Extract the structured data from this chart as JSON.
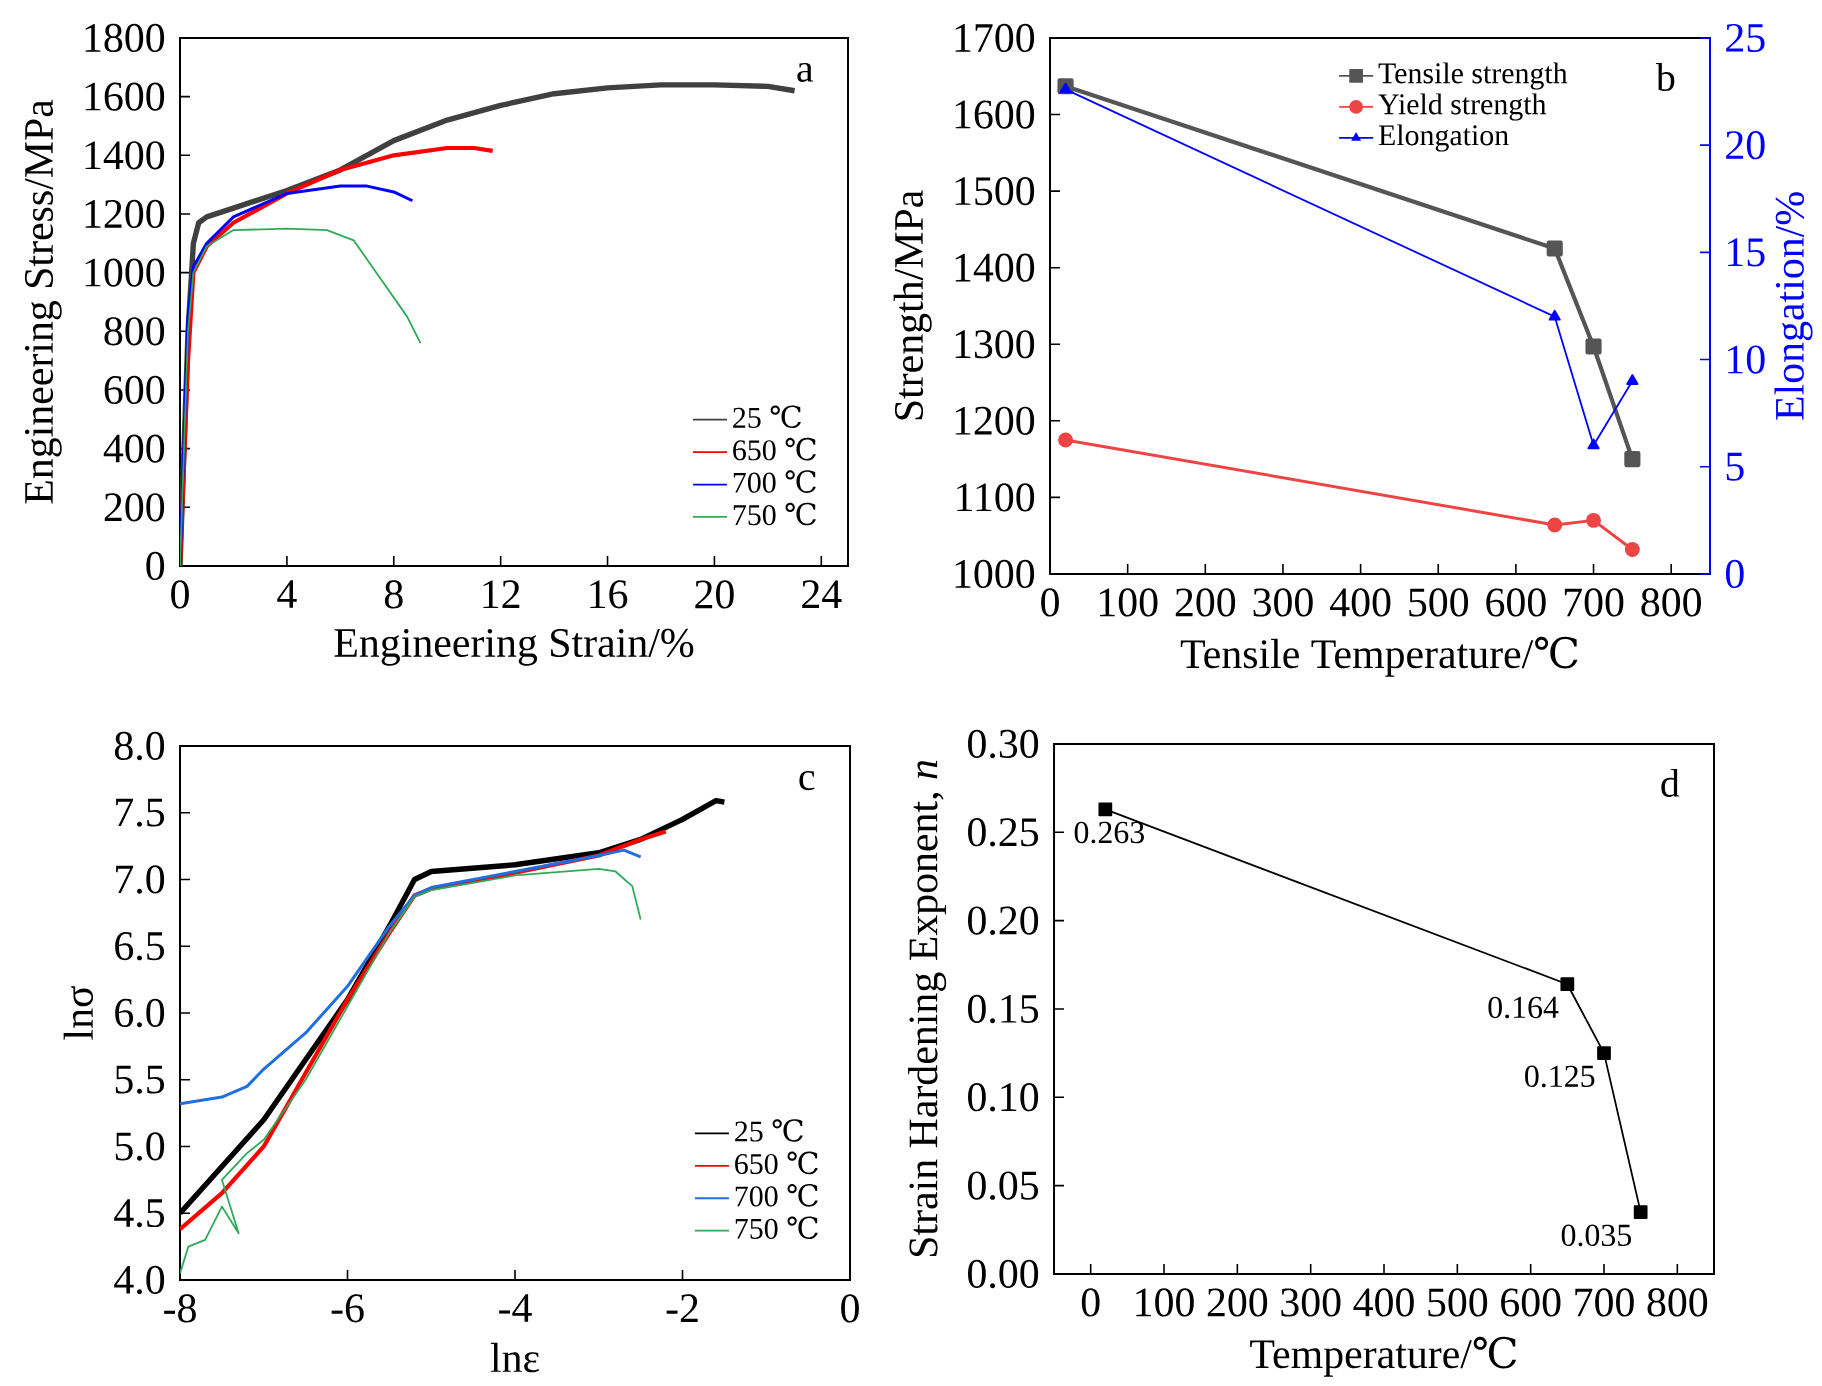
{
  "chart_data": [
    {
      "type": "line",
      "xlabel": "Engineering Strain/%",
      "ylabel": "Engineering Stress/MPa",
      "annotations": [
        "a"
      ],
      "xlim": [
        0,
        25
      ],
      "xticks": [
        0,
        4,
        8,
        12,
        16,
        20,
        24
      ],
      "ylim": [
        0,
        1800
      ],
      "yticks": [
        0,
        200,
        400,
        600,
        800,
        1000,
        1200,
        1400,
        1600,
        1800
      ],
      "legend": "bottom right",
      "series": [
        {
          "name": "25 ℃",
          "color": "#404040",
          "x": [
            0,
            0.3,
            0.5,
            0.7,
            1,
            2,
            4,
            6,
            8,
            10,
            12,
            14,
            16,
            18,
            20,
            22,
            23
          ],
          "values": [
            0,
            800,
            1100,
            1170,
            1190,
            1220,
            1280,
            1350,
            1450,
            1520,
            1570,
            1610,
            1630,
            1640,
            1640,
            1635,
            1620
          ]
        },
        {
          "name": "650 ℃",
          "color": "#ff0000",
          "x": [
            0,
            0.3,
            0.5,
            1,
            2,
            4,
            6,
            8,
            10,
            11,
            11.7
          ],
          "values": [
            0,
            700,
            1000,
            1090,
            1170,
            1270,
            1350,
            1400,
            1425,
            1425,
            1415
          ]
        },
        {
          "name": "700 ℃",
          "color": "#0000ff",
          "x": [
            0,
            0.3,
            0.5,
            1,
            2,
            4,
            6,
            7,
            8,
            8.7
          ],
          "values": [
            0,
            850,
            1020,
            1100,
            1190,
            1270,
            1295,
            1295,
            1275,
            1245
          ]
        },
        {
          "name": "750 ℃",
          "color": "#2eaa5a",
          "x": [
            0,
            0.3,
            0.5,
            1,
            2,
            4,
            5.5,
            6.5,
            7.5,
            8.5,
            9
          ],
          "values": [
            0,
            800,
            1000,
            1090,
            1145,
            1150,
            1145,
            1110,
            980,
            850,
            760
          ]
        }
      ]
    },
    {
      "type": "line",
      "xlabel": "Tensile Temperature/℃",
      "ylabel": "Strength/MPa",
      "y2label": "Elongation/%",
      "annotations": [
        "b"
      ],
      "xlim": [
        0,
        850
      ],
      "xticks": [
        0,
        100,
        200,
        300,
        400,
        500,
        600,
        700,
        800
      ],
      "ylim": [
        1000,
        1700
      ],
      "yticks": [
        1000,
        1100,
        1200,
        1300,
        1400,
        1500,
        1600,
        1700
      ],
      "y2lim": [
        0,
        25
      ],
      "y2ticks": [
        0,
        5,
        10,
        15,
        20,
        25
      ],
      "legend": "top right",
      "x": [
        20,
        650,
        700,
        750
      ],
      "series": [
        {
          "name": "Tensile strength",
          "color": "#555555",
          "marker": "square",
          "values": [
            1637,
            1425,
            1297,
            1150
          ]
        },
        {
          "name": "Yield strength",
          "color": "#ee4444",
          "marker": "circle",
          "values": [
            1175,
            1064,
            1070,
            1032
          ]
        },
        {
          "name": "Elongation",
          "color": "#0000ff",
          "marker": "triangle",
          "axis": "y2",
          "values": [
            22.6,
            12,
            6,
            9
          ]
        }
      ]
    },
    {
      "type": "line",
      "xlabel": "lnε",
      "ylabel": "lnσ",
      "annotations": [
        "c"
      ],
      "xlim": [
        -8,
        0
      ],
      "xticks": [
        -8,
        -6,
        -4,
        -2,
        0
      ],
      "ylim": [
        4,
        8
      ],
      "yticks": [
        {
          "value": 4,
          "label": "4.0"
        },
        4.5,
        {
          "value": 5,
          "label": "5.0"
        },
        5.5,
        {
          "value": 6,
          "label": "6.0"
        },
        6.5,
        {
          "value": 7,
          "label": "7.0"
        },
        7.5,
        {
          "value": 8,
          "label": "8.0"
        }
      ],
      "legend": "bottom right",
      "series": [
        {
          "name": "25 ℃",
          "color": "#000000",
          "x": [
            -8,
            -7,
            -6,
            -5.5,
            -5.2,
            -5,
            -4,
            -3,
            -2.5,
            -2,
            -1.6,
            -1.5
          ],
          "values": [
            4.5,
            5.2,
            6.1,
            6.65,
            7.0,
            7.06,
            7.11,
            7.2,
            7.3,
            7.45,
            7.59,
            7.58
          ]
        },
        {
          "name": "650 ℃",
          "color": "#ff0000",
          "x": [
            -8,
            -7.5,
            -7,
            -6.5,
            -6,
            -5.5,
            -5.2,
            -5,
            -4,
            -3,
            -2.5,
            -2.2
          ],
          "values": [
            4.38,
            4.65,
            5.0,
            5.55,
            6.1,
            6.6,
            6.88,
            6.93,
            7.05,
            7.18,
            7.3,
            7.36
          ]
        },
        {
          "name": "700 ℃",
          "color": "#1f6fe0",
          "x": [
            -8,
            -7.5,
            -7.2,
            -7,
            -6.5,
            -6,
            -5.5,
            -5.2,
            -5,
            -4,
            -3,
            -2.7,
            -2.5
          ],
          "values": [
            5.32,
            5.37,
            5.45,
            5.58,
            5.85,
            6.2,
            6.65,
            6.88,
            6.94,
            7.06,
            7.18,
            7.22,
            7.17
          ]
        },
        {
          "name": "750 ℃",
          "color": "#2eaa5a",
          "x": [
            -8,
            -7.9,
            -7.7,
            -7.5,
            -7.3,
            -7.5,
            -7.2,
            -7,
            -6.5,
            -6,
            -5.5,
            -5.2,
            -5,
            -4,
            -3,
            -2.8,
            -2.6,
            -2.5
          ],
          "values": [
            4.05,
            4.25,
            4.3,
            4.55,
            4.35,
            4.75,
            4.95,
            5.05,
            5.5,
            6.05,
            6.6,
            6.87,
            6.92,
            7.03,
            7.08,
            7.06,
            6.95,
            6.7
          ]
        }
      ]
    },
    {
      "type": "line",
      "xlabel": "Temperature/℃",
      "ylabel": "Strain Hardening Exponent, *n*",
      "annotations": [
        "d"
      ],
      "xlim": [
        -50,
        850
      ],
      "xticks": [
        0,
        100,
        200,
        300,
        400,
        500,
        600,
        700,
        800
      ],
      "ylim": [
        0,
        0.3
      ],
      "yticks": [
        {
          "value": 0,
          "label": "0.00"
        },
        0.05,
        {
          "value": 0.1,
          "label": "0.10"
        },
        0.15,
        {
          "value": 0.2,
          "label": "0.20"
        },
        0.25,
        {
          "value": 0.3,
          "label": "0.30"
        }
      ],
      "marker": "square",
      "data_labels": true,
      "x": [
        20,
        650,
        700,
        750
      ],
      "series": [
        {
          "color": "#000000",
          "values": [
            0.263,
            0.164,
            0.125,
            0.035
          ]
        }
      ]
    }
  ]
}
